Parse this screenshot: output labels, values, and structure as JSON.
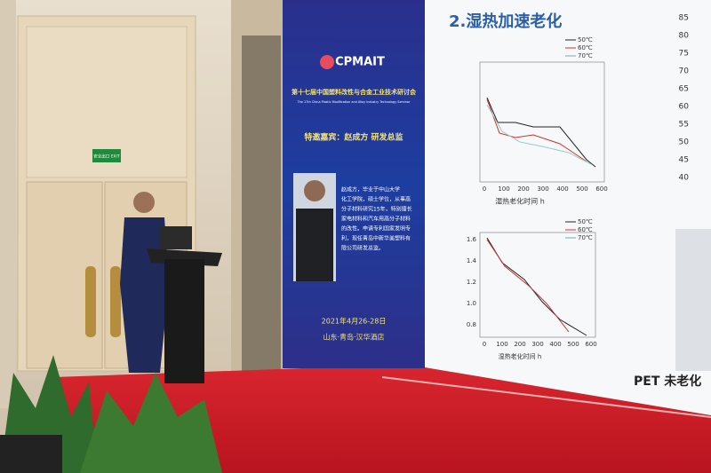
{
  "exit_sign": "安全出口 EXIT",
  "banner": {
    "logo": "CPMAIT",
    "title_cn": "第十七届中国塑料改性与合金工业技术研讨会",
    "title_en": "The 17th China Plastic Modification and Alloy Industry Technology Seminar",
    "guest": "特邀嘉宾：赵成方 研发总监",
    "bio": [
      "赵成方，毕业于中山大学",
      "化工学院，硕士学位，从事高",
      "分子材料研究15年，特别擅长",
      "家电材料和汽车用高分子材料",
      "的改性。申请专利国家发明专",
      "利，现任青岛中新华美塑料有",
      "限公司研发总监。"
    ],
    "date": "2021年4月26-28日",
    "venue": "山东·青岛·汉华酒店"
  },
  "screen": {
    "heading": "2.湿热加速老化",
    "legend": [
      "50℃",
      "60℃",
      "70℃"
    ],
    "top_x_ticks": [
      "0",
      "100",
      "200",
      "300",
      "400",
      "500",
      "600"
    ],
    "top_x_label": "湿热老化时间 h",
    "bottom_x_ticks": [
      "0",
      "100",
      "200",
      "300",
      "400",
      "500",
      "600"
    ],
    "bottom_y_ticks": [
      "1.6",
      "1.4",
      "1.2",
      "1.0",
      "0.8"
    ],
    "bottom_x_label": "湿热老化时间 h",
    "right_y_ticks": [
      "85",
      "80",
      "75",
      "70",
      "65",
      "60",
      "55",
      "50",
      "45",
      "40"
    ],
    "footer": "PET 未老化"
  }
}
